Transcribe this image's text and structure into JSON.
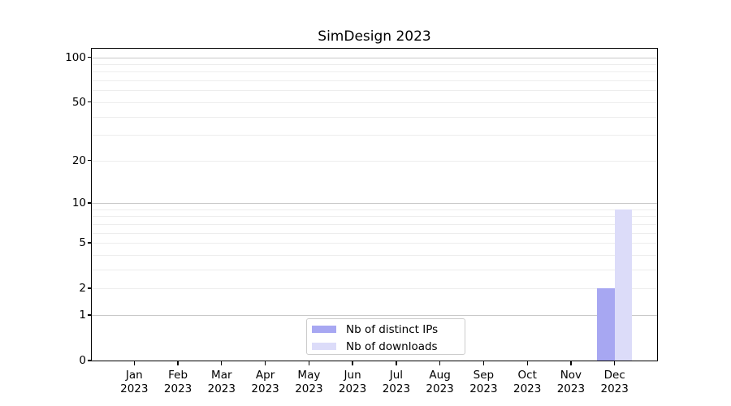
{
  "title": "SimDesign 2023",
  "chart_data": {
    "type": "bar",
    "title": "SimDesign 2023",
    "xlabel": "",
    "ylabel": "",
    "categories": [
      "Jan",
      "Feb",
      "Mar",
      "Apr",
      "May",
      "Jun",
      "Jul",
      "Aug",
      "Sep",
      "Oct",
      "Nov",
      "Dec"
    ],
    "category_sublabel": "2023",
    "series": [
      {
        "name": "Nb of distinct IPs",
        "color": "#a7a7f2",
        "values": [
          0,
          0,
          0,
          0,
          0,
          0,
          0,
          0,
          0,
          0,
          0,
          2
        ]
      },
      {
        "name": "Nb of downloads",
        "color": "#dcdcf9",
        "values": [
          0,
          0,
          0,
          0,
          0,
          0,
          0,
          0,
          0,
          0,
          0,
          9
        ]
      }
    ],
    "yscale": "log1p",
    "ylim": [
      0,
      114
    ],
    "ytick_values": [
      0,
      1,
      2,
      5,
      10,
      20,
      50,
      100
    ],
    "ytick_labels": [
      "0",
      "1",
      "2",
      "5",
      "10",
      "20",
      "50",
      "100"
    ],
    "gridlines_major": [
      1,
      10,
      100
    ],
    "gridlines_minor": [
      2,
      3,
      4,
      5,
      6,
      7,
      8,
      9,
      20,
      30,
      40,
      50,
      60,
      70,
      80,
      90
    ],
    "grid": true,
    "legend_position": "lower center",
    "colors": {
      "major_grid": "#c9c9c9",
      "minor_grid": "#ededed",
      "spine": "#000000",
      "background": "#ffffff"
    }
  }
}
